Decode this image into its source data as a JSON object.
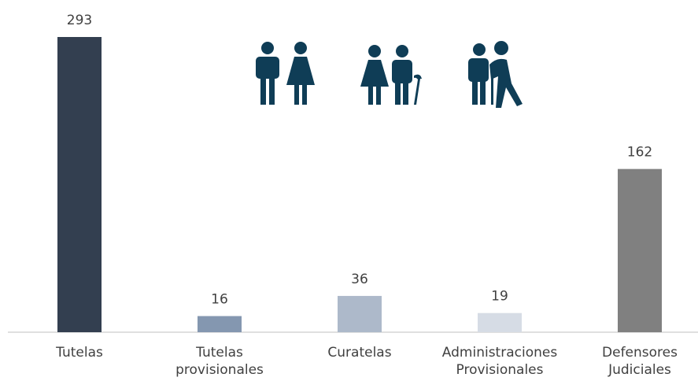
{
  "chart_data": {
    "type": "bar",
    "categories": [
      "Tutelas",
      "Tutelas provisionales",
      "Curatelas",
      "Administraciones Provisionales",
      "Defensores Judiciales"
    ],
    "values": [
      293,
      16,
      36,
      19,
      162
    ],
    "colors": [
      "#333f50",
      "#8497b0",
      "#adb9ca",
      "#d6dce5",
      "#808080"
    ]
  }
}
